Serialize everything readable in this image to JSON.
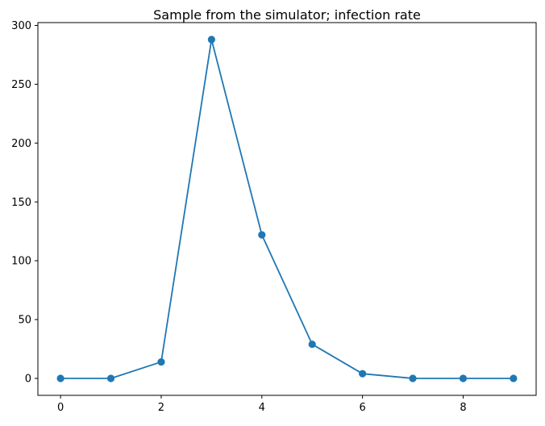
{
  "chart_data": {
    "type": "line",
    "title": "Sample from the simulator; infection rate",
    "xlabel": "",
    "ylabel": "",
    "xlim": [
      -0.45,
      9.45
    ],
    "ylim": [
      -14.4,
      302.4
    ],
    "xticks": [
      0,
      2,
      4,
      6,
      8
    ],
    "yticks": [
      0,
      50,
      100,
      150,
      200,
      250,
      300
    ],
    "grid": false,
    "legend": "none",
    "series": [
      {
        "x": [
          0,
          1,
          2,
          3,
          4,
          5,
          6,
          7,
          8,
          9
        ],
        "values": [
          0,
          0,
          14,
          288,
          122,
          29,
          4,
          0,
          0,
          0
        ],
        "color": "#1f77b4",
        "marker": "circle"
      }
    ]
  }
}
